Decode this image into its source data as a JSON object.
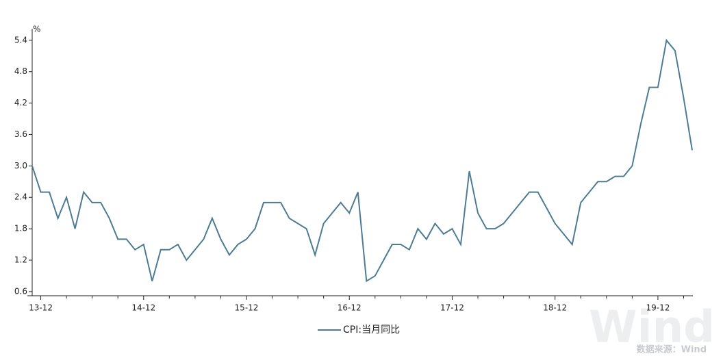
{
  "chart_data": {
    "type": "line",
    "y_unit": "%",
    "categories": [
      null,
      "13-12",
      null,
      null,
      null,
      null,
      null,
      null,
      null,
      null,
      null,
      null,
      null,
      "14-12",
      null,
      null,
      null,
      null,
      null,
      null,
      null,
      null,
      null,
      null,
      null,
      "15-12",
      null,
      null,
      null,
      null,
      null,
      null,
      null,
      null,
      null,
      null,
      null,
      "16-12",
      null,
      null,
      null,
      null,
      null,
      null,
      null,
      null,
      null,
      null,
      null,
      "17-12",
      null,
      null,
      null,
      null,
      null,
      null,
      null,
      null,
      null,
      null,
      null,
      "18-12",
      null,
      null,
      null,
      null,
      null,
      null,
      null,
      null,
      null,
      null,
      null,
      "19-12",
      null,
      null,
      null,
      null
    ],
    "series": [
      {
        "name": "CPI:当月同比",
        "color": "#4d7b93",
        "values": [
          3.0,
          2.5,
          2.5,
          2.0,
          2.4,
          1.8,
          2.5,
          2.3,
          2.3,
          2.0,
          1.6,
          1.6,
          1.4,
          1.5,
          0.8,
          1.4,
          1.4,
          1.5,
          1.2,
          1.4,
          1.6,
          2.0,
          1.6,
          1.3,
          1.5,
          1.6,
          1.8,
          2.3,
          2.3,
          2.3,
          2.0,
          1.9,
          1.8,
          1.3,
          1.9,
          2.1,
          2.3,
          2.1,
          2.5,
          0.8,
          0.9,
          1.2,
          1.5,
          1.5,
          1.4,
          1.8,
          1.6,
          1.9,
          1.7,
          1.8,
          1.5,
          2.9,
          2.1,
          1.8,
          1.8,
          1.9,
          2.1,
          2.3,
          2.5,
          2.5,
          2.2,
          1.9,
          1.7,
          1.5,
          2.3,
          2.5,
          2.7,
          2.7,
          2.8,
          2.8,
          3.0,
          3.8,
          4.5,
          4.5,
          5.4,
          5.2,
          4.3,
          3.3
        ]
      }
    ],
    "ylim": [
      0.52,
      5.62
    ],
    "yticks": [
      0.6,
      1.2,
      1.8,
      2.4,
      {
        "value": 3,
        "label": "3.0"
      },
      3.6,
      4.2,
      4.8,
      5.4
    ],
    "legend": "bottom",
    "source": "数据来源：Wind",
    "watermark": "Wind"
  }
}
